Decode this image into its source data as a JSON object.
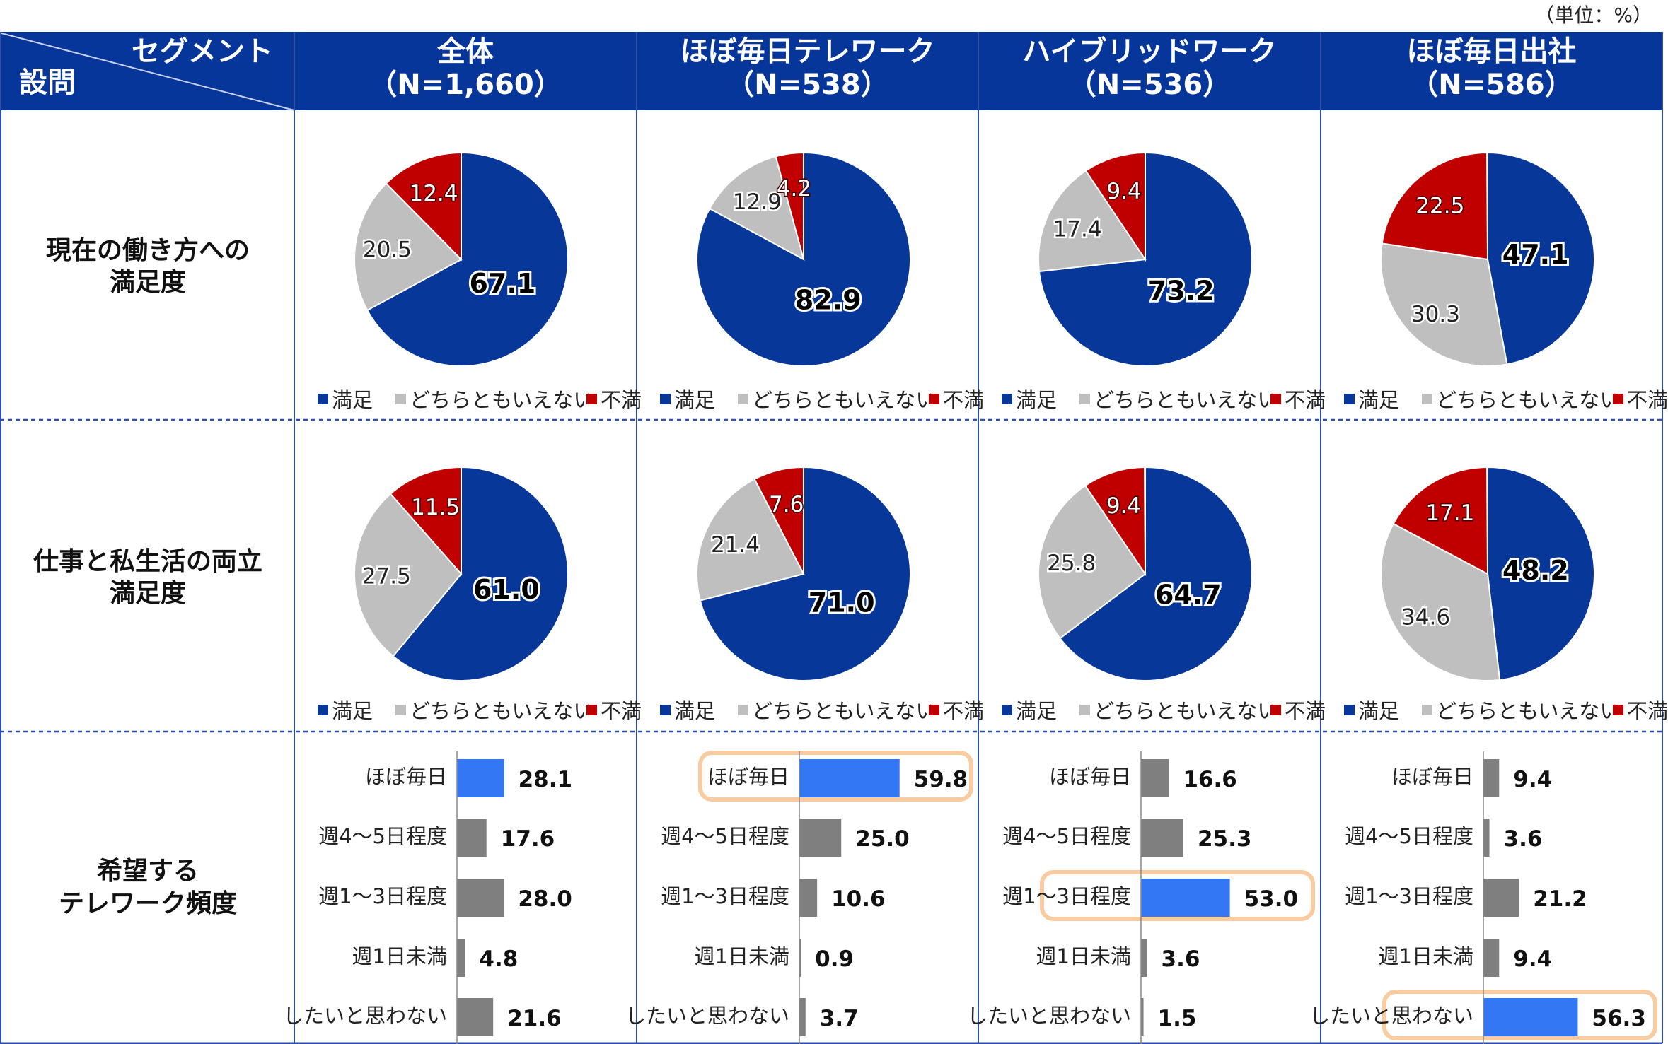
{
  "unit_label": "（単位：%）",
  "header": {
    "corner_segment": "セグメント",
    "corner_question": "設問",
    "columns": [
      {
        "title": "全体",
        "n": "（N=1,660）"
      },
      {
        "title": "ほぼ毎日テレワーク",
        "n": "（N=538）"
      },
      {
        "title": "ハイブリッドワーク",
        "n": "（N=536）"
      },
      {
        "title": "ほぼ毎日出社",
        "n": "（N=586）"
      }
    ]
  },
  "questions": [
    {
      "lines": [
        "現在の働き方への",
        "満足度"
      ]
    },
    {
      "lines": [
        "仕事と私生活の両立",
        "満足度"
      ]
    },
    {
      "lines": [
        "希望する",
        "テレワーク頻度"
      ]
    }
  ],
  "legend": [
    "満足",
    "どちらともいえない",
    "不満"
  ],
  "colors": {
    "header": "#06369a",
    "satisfied": "#063799",
    "neutral": "#bfbfbf",
    "dissatisfied": "#c00000",
    "bar_default": "#7f7f7f",
    "bar_highlight": "#3377f5",
    "highlight_box": "#f8cba0",
    "grid": "#2f4fa8"
  },
  "chart_data": [
    {
      "type": "pie",
      "title": "現在の働き方への満足度",
      "categories": [
        "満足",
        "どちらともいえない",
        "不満"
      ],
      "series": [
        {
          "name": "全体",
          "values": [
            67.1,
            20.5,
            12.4
          ]
        },
        {
          "name": "ほぼ毎日テレワーク",
          "values": [
            82.9,
            12.9,
            4.2
          ]
        },
        {
          "name": "ハイブリッドワーク",
          "values": [
            73.2,
            17.4,
            9.4
          ]
        },
        {
          "name": "ほぼ毎日出社",
          "values": [
            47.1,
            30.3,
            22.5
          ]
        }
      ]
    },
    {
      "type": "pie",
      "title": "仕事と私生活の両立満足度",
      "categories": [
        "満足",
        "どちらともいえない",
        "不満"
      ],
      "series": [
        {
          "name": "全体",
          "values": [
            61.0,
            27.5,
            11.5
          ]
        },
        {
          "name": "ほぼ毎日テレワーク",
          "values": [
            71.0,
            21.4,
            7.6
          ]
        },
        {
          "name": "ハイブリッドワーク",
          "values": [
            64.7,
            25.8,
            9.4
          ]
        },
        {
          "name": "ほぼ毎日出社",
          "values": [
            48.2,
            34.6,
            17.1
          ]
        }
      ]
    },
    {
      "type": "bar",
      "orientation": "horizontal",
      "title": "希望するテレワーク頻度",
      "categories": [
        "ほぼ毎日",
        "週4～5日程度",
        "週1～3日程度",
        "週1日未満",
        "したいと思わない"
      ],
      "series": [
        {
          "name": "全体",
          "values": [
            28.1,
            17.6,
            28.0,
            4.8,
            21.6
          ],
          "highlight_index": 0,
          "boxed": false
        },
        {
          "name": "ほぼ毎日テレワーク",
          "values": [
            59.8,
            25.0,
            10.6,
            0.9,
            3.7
          ],
          "highlight_index": 0,
          "boxed": true
        },
        {
          "name": "ハイブリッドワーク",
          "values": [
            16.6,
            25.3,
            53.0,
            3.6,
            1.5
          ],
          "highlight_index": 2,
          "boxed": true
        },
        {
          "name": "ほぼ毎日出社",
          "values": [
            9.4,
            3.6,
            21.2,
            9.4,
            56.3
          ],
          "highlight_index": 4,
          "boxed": true
        }
      ]
    }
  ]
}
